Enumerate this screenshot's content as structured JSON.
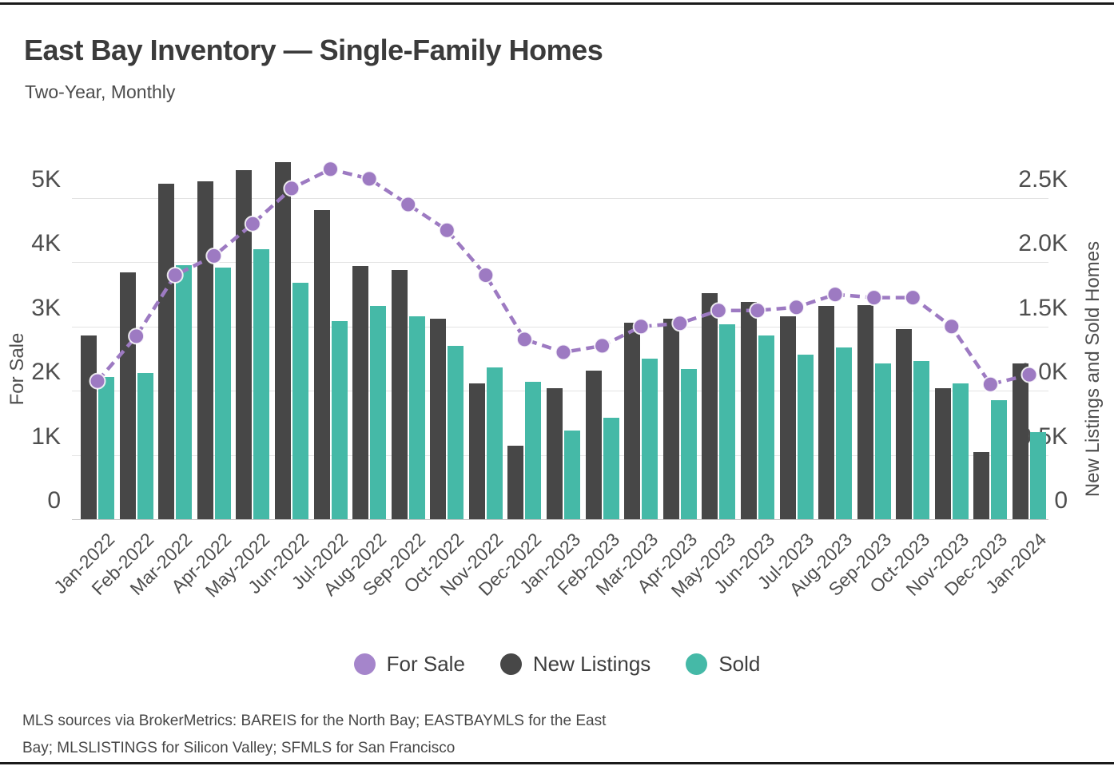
{
  "page": {
    "title": "East Bay Inventory — Single-Family Homes",
    "subtitle": "Two-Year, Monthly",
    "footer_line1": "MLS sources via BrokerMetrics: BAREIS for the North Bay; EASTBAYMLS for the East",
    "footer_line2": "Bay; MLSLISTINGS for Silicon Valley; SFMLS for San Francisco"
  },
  "chart_data": {
    "type": "bar+line",
    "title": "East Bay Inventory — Single-Family Homes",
    "subtitle": "Two-Year, Monthly",
    "categories": [
      "Jan-2022",
      "Feb-2022",
      "Mar-2022",
      "Apr-2022",
      "May-2022",
      "Jun-2022",
      "Jul-2022",
      "Aug-2022",
      "Sep-2022",
      "Oct-2022",
      "Nov-2022",
      "Dec-2022",
      "Jan-2023",
      "Feb-2023",
      "Mar-2023",
      "Apr-2023",
      "May-2023",
      "Jun-2023",
      "Jul-2023",
      "Aug-2023",
      "Sep-2023",
      "Oct-2023",
      "Nov-2023",
      "Dec-2023",
      "Jan-2024"
    ],
    "series": [
      {
        "name": "For Sale",
        "type": "line",
        "axis": "left",
        "color": "#9d7ac2",
        "values": [
          2150,
          2850,
          3800,
          4100,
          4600,
          5150,
          5450,
          5300,
          4900,
          4500,
          3800,
          2800,
          2600,
          2700,
          3000,
          3050,
          3250,
          3250,
          3300,
          3500,
          3450,
          3450,
          3000,
          2100,
          2250
        ]
      },
      {
        "name": "New Listings",
        "type": "bar",
        "axis": "right",
        "color": "#474747",
        "values": [
          1430,
          1920,
          2610,
          2630,
          2720,
          2780,
          2410,
          1970,
          1940,
          1560,
          1060,
          570,
          1020,
          1160,
          1530,
          1560,
          1760,
          1690,
          1580,
          1660,
          1670,
          1480,
          1020,
          520,
          1210
        ]
      },
      {
        "name": "Sold",
        "type": "bar",
        "axis": "right",
        "color": "#45b9a7",
        "values": [
          1110,
          1140,
          1980,
          1960,
          2100,
          1840,
          1540,
          1660,
          1580,
          1350,
          1180,
          1070,
          690,
          790,
          1250,
          1170,
          1520,
          1430,
          1280,
          1340,
          1210,
          1230,
          1060,
          930,
          680
        ]
      }
    ],
    "left_axis": {
      "label": "For Sale",
      "ticks": [
        "0",
        "1K",
        "2K",
        "3K",
        "4K",
        "5K"
      ],
      "tick_values": [
        0,
        1000,
        2000,
        3000,
        4000,
        5000
      ],
      "range": [
        0,
        5660
      ]
    },
    "right_axis": {
      "label": "New Listings and Sold Homes",
      "ticks": [
        "0",
        "0.5K",
        "1.0K",
        "1.5K",
        "2.0K",
        "2.5K"
      ],
      "tick_values": [
        0,
        500,
        1000,
        1500,
        2000,
        2500
      ],
      "range": [
        0,
        2830
      ]
    },
    "legend": [
      {
        "label": "For Sale",
        "color": "#a585cb"
      },
      {
        "label": "New Listings",
        "color": "#474747"
      },
      {
        "label": "Sold",
        "color": "#45b9a7"
      }
    ],
    "grid": "horizontal-on",
    "legend_position": "bottom"
  }
}
